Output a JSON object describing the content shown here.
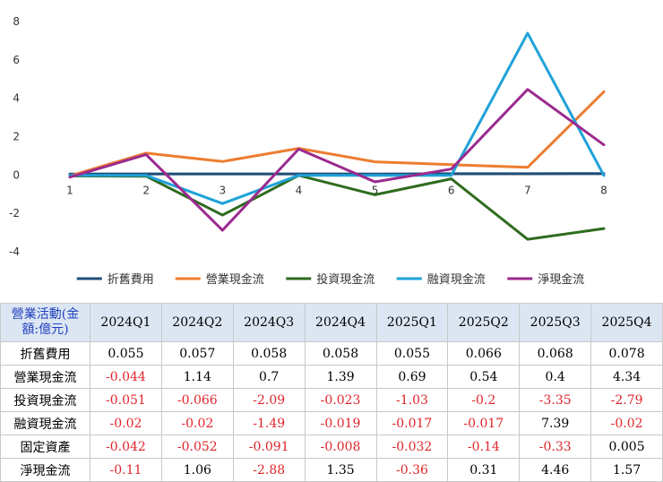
{
  "chart_data": {
    "type": "line",
    "x": [
      1,
      2,
      3,
      4,
      5,
      6,
      7,
      8
    ],
    "x_tick_labels": [
      "1",
      "2",
      "3",
      "4",
      "5",
      "6",
      "7",
      "8"
    ],
    "ylim": [
      -4,
      8
    ],
    "y_ticks": [
      -4,
      -2,
      0,
      2,
      4,
      6,
      8
    ],
    "y_tick_labels": [
      "-4",
      "-2",
      "0",
      "2",
      "4",
      "6",
      "8"
    ],
    "grid": false,
    "legend_position": "bottom",
    "series": [
      {
        "name": "折舊費用",
        "color": "#1f4e79",
        "values": [
          0.055,
          0.057,
          0.058,
          0.058,
          0.055,
          0.066,
          0.068,
          0.078
        ]
      },
      {
        "name": "營業現金流",
        "color": "#ed7d31",
        "values": [
          -0.044,
          1.14,
          0.7,
          1.39,
          0.69,
          0.54,
          0.4,
          4.34
        ]
      },
      {
        "name": "投資現金流",
        "color": "#2e6b1f",
        "values": [
          -0.051,
          -0.066,
          -2.09,
          -0.023,
          -1.03,
          -0.2,
          -3.35,
          -2.79
        ]
      },
      {
        "name": "融資現金流",
        "color": "#1fa2d8",
        "values": [
          -0.02,
          -0.02,
          -1.49,
          -0.019,
          -0.017,
          -0.017,
          7.39,
          -0.02
        ]
      },
      {
        "name": "淨現金流",
        "color": "#9b2a8f",
        "values": [
          -0.11,
          1.06,
          -2.88,
          1.35,
          -0.36,
          0.31,
          4.46,
          1.57
        ]
      }
    ]
  },
  "table": {
    "corner_line1": "營業活動(金",
    "corner_line2": "額:億元)",
    "columns": [
      "2024Q1",
      "2024Q2",
      "2024Q3",
      "2024Q4",
      "2025Q1",
      "2025Q2",
      "2025Q3",
      "2025Q4"
    ],
    "rows": [
      {
        "label": "折舊費用",
        "cells": [
          "0.055",
          "0.057",
          "0.058",
          "0.058",
          "0.055",
          "0.066",
          "0.068",
          "0.078"
        ]
      },
      {
        "label": "營業現金流",
        "cells": [
          "-0.044",
          "1.14",
          "0.7",
          "1.39",
          "0.69",
          "0.54",
          "0.4",
          "4.34"
        ]
      },
      {
        "label": "投資現金流",
        "cells": [
          "-0.051",
          "-0.066",
          "-2.09",
          "-0.023",
          "-1.03",
          "-0.2",
          "-3.35",
          "-2.79"
        ]
      },
      {
        "label": "融資現金流",
        "cells": [
          "-0.02",
          "-0.02",
          "-1.49",
          "-0.019",
          "-0.017",
          "-0.017",
          "7.39",
          "-0.02"
        ]
      },
      {
        "label": "固定資產",
        "cells": [
          "-0.042",
          "-0.052",
          "-0.091",
          "-0.008",
          "-0.032",
          "-0.14",
          "-0.33",
          "0.005"
        ]
      },
      {
        "label": "淨現金流",
        "cells": [
          "-0.11",
          "1.06",
          "-2.88",
          "1.35",
          "-0.36",
          "0.31",
          "4.46",
          "1.57"
        ]
      }
    ]
  }
}
